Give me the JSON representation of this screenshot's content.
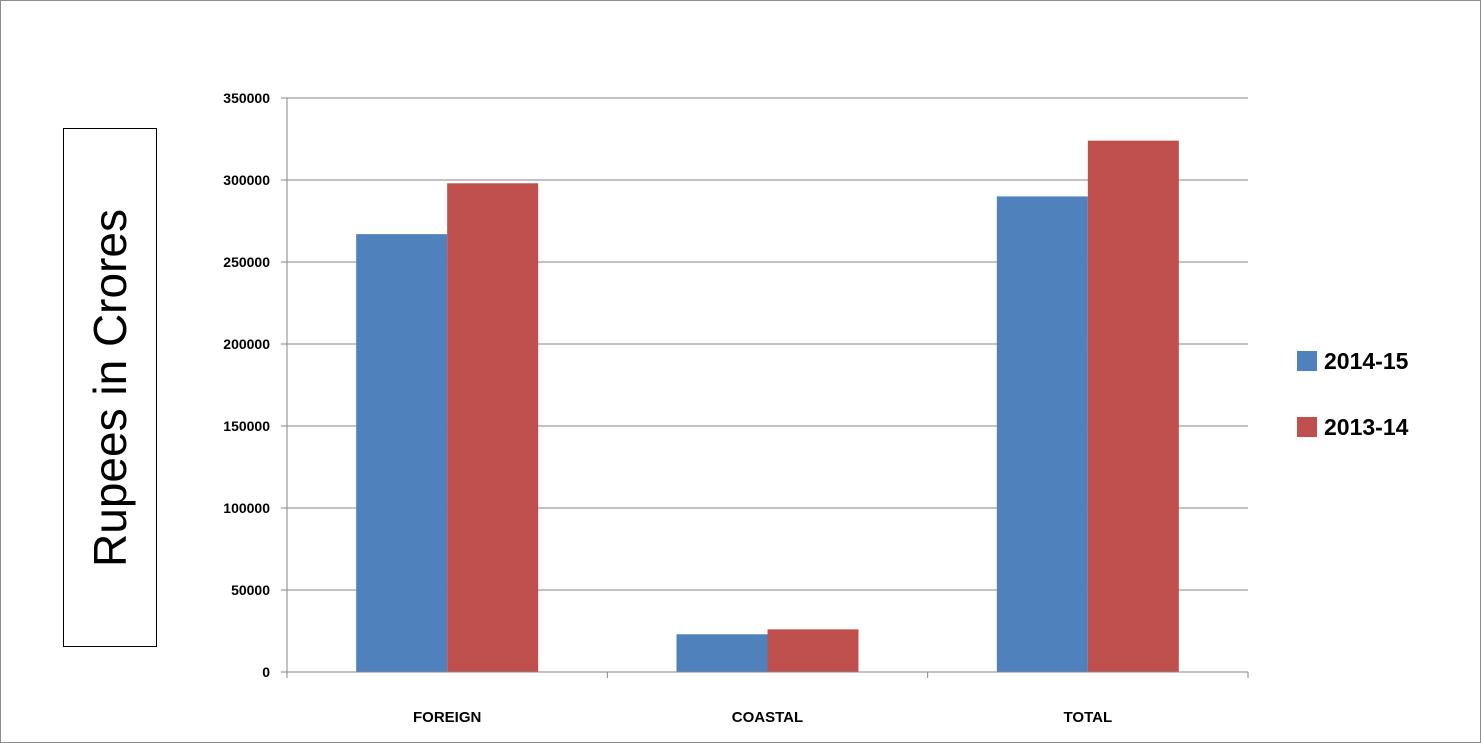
{
  "chart_data": {
    "type": "bar",
    "categories": [
      "FOREIGN",
      "COASTAL",
      "TOTAL"
    ],
    "series": [
      {
        "name": "2014-15",
        "color": "#4f81bd",
        "values": [
          267000,
          23000,
          290000
        ]
      },
      {
        "name": "2013-14",
        "color": "#c0504d",
        "values": [
          298000,
          26000,
          324000
        ]
      }
    ],
    "ylabel": "Rupees in Crores",
    "ylim": [
      0,
      350000
    ],
    "yticks": [
      0,
      50000,
      100000,
      150000,
      200000,
      250000,
      300000,
      350000
    ],
    "ytick_labels": [
      "0",
      "50000",
      "100000",
      "150000",
      "200000",
      "250000",
      "300000",
      "350000"
    ],
    "grid": true,
    "legend_position": "right"
  }
}
